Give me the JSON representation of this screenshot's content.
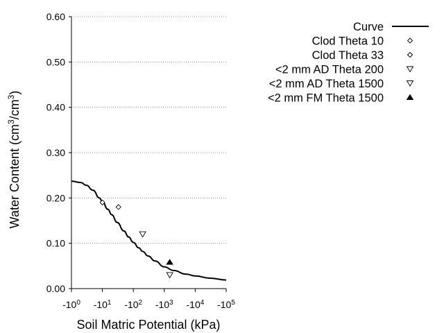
{
  "chart_data": {
    "type": "scatter",
    "title": "",
    "xlabel": "Soil Matric Potential (kPa)",
    "ylabel": {
      "prefix": "Water Content (cm",
      "sup1": "3",
      "mid": "/cm",
      "sup2": "3",
      "suffix": ")"
    },
    "x_scale": "log",
    "x_ticks": [
      {
        "value": 1,
        "base": "-10",
        "exp": "0"
      },
      {
        "value": 10,
        "base": "-10",
        "exp": "1"
      },
      {
        "value": 100,
        "base": "-10",
        "exp": "2"
      },
      {
        "value": 1000,
        "base": "-10",
        "exp": "3"
      },
      {
        "value": 10000,
        "base": "-10",
        "exp": "4"
      },
      {
        "value": 100000,
        "base": "-10",
        "exp": "5"
      }
    ],
    "xlim": [
      1,
      100000
    ],
    "ylim": [
      0,
      0.6
    ],
    "y_ticks": [
      {
        "value": 0.0,
        "label": "0.00"
      },
      {
        "value": 0.1,
        "label": "0.10"
      },
      {
        "value": 0.2,
        "label": "0.20"
      },
      {
        "value": 0.3,
        "label": "0.30"
      },
      {
        "value": 0.4,
        "label": "0.40"
      },
      {
        "value": 0.5,
        "label": "0.50"
      },
      {
        "value": 0.6,
        "label": "0.60"
      }
    ],
    "grid": "horizontal dotted",
    "legend_position": "right",
    "curve": {
      "name": "Curve",
      "points": [
        [
          1,
          0.237
        ],
        [
          2,
          0.234
        ],
        [
          3,
          0.228
        ],
        [
          5,
          0.217
        ],
        [
          8,
          0.2
        ],
        [
          10,
          0.192
        ],
        [
          15,
          0.175
        ],
        [
          20,
          0.163
        ],
        [
          30,
          0.146
        ],
        [
          50,
          0.127
        ],
        [
          70,
          0.114
        ],
        [
          100,
          0.102
        ],
        [
          150,
          0.09
        ],
        [
          200,
          0.082
        ],
        [
          300,
          0.072
        ],
        [
          500,
          0.061
        ],
        [
          1000,
          0.048
        ],
        [
          2000,
          0.04
        ],
        [
          5000,
          0.032
        ],
        [
          10000,
          0.028
        ],
        [
          30000,
          0.023
        ],
        [
          100000,
          0.019
        ]
      ]
    },
    "series": [
      {
        "name": "Clod Theta 10",
        "marker": "diamond",
        "points": [
          [
            10,
            0.19
          ]
        ]
      },
      {
        "name": "Clod Theta 33",
        "marker": "diamond",
        "points": [
          [
            33,
            0.18
          ]
        ]
      },
      {
        "name": "<2 mm AD Theta 200",
        "marker": "triangle-down",
        "points": [
          [
            200,
            0.12
          ]
        ]
      },
      {
        "name": "<2 mm AD Theta 1500",
        "marker": "triangle-down",
        "points": [
          [
            1500,
            0.03
          ]
        ]
      },
      {
        "name": "<2 mm FM Theta 1500",
        "marker": "triangle-up-filled",
        "points": [
          [
            1500,
            0.058
          ]
        ]
      }
    ]
  }
}
